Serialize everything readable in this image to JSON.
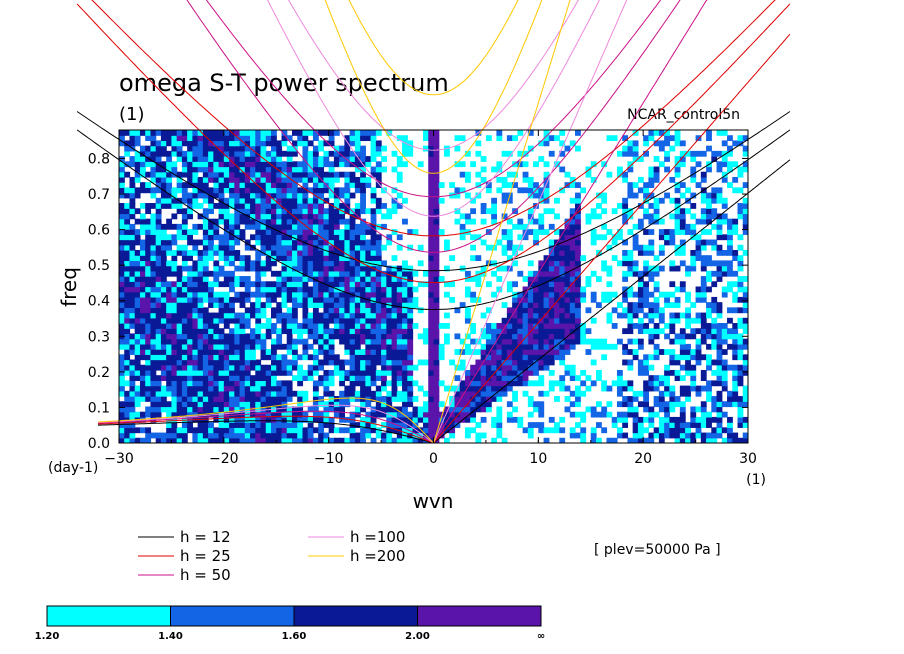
{
  "chart_data": {
    "type": "heatmap",
    "title": "omega S-T power spectrum",
    "subtitle": "(1)",
    "case_label": "NCAR_control5n",
    "xlabel": "wvn",
    "ylabel": "freq",
    "x_unit": "(1)",
    "y_unit": "(day-1)",
    "xlim": [
      -30,
      30
    ],
    "ylim": [
      0,
      0.88
    ],
    "xticks": [
      "−30",
      "−20",
      "−10",
      "0",
      "10",
      "20",
      "30"
    ],
    "xtick_values": [
      -30,
      -20,
      -10,
      0,
      10,
      20,
      30
    ],
    "yticks": [
      "0.0",
      "0.1",
      "0.2",
      "0.3",
      "0.4",
      "0.5",
      "0.6",
      "0.7",
      "0.8"
    ],
    "ytick_values": [
      0,
      0.1,
      0.2,
      0.3,
      0.4,
      0.5,
      0.6,
      0.7,
      0.8
    ],
    "annotation": "[ plev=50000 Pa ]",
    "colorbar": {
      "labels": [
        "1.20",
        "1.40",
        "1.60",
        "2.00",
        "∞"
      ],
      "bins": [
        {
          "from": 1.2,
          "to": 1.4,
          "color": "#00ffff"
        },
        {
          "from": 1.4,
          "to": 1.6,
          "color": "#1464e6"
        },
        {
          "from": 1.6,
          "to": 2.0,
          "color": "#0a1a96"
        },
        {
          "from": 2.0,
          "to": "inf",
          "color": "#5a14aa"
        }
      ]
    },
    "dispersion_curves": [
      {
        "label": "h = 12",
        "h": 12,
        "color": "#000000"
      },
      {
        "label": "h = 25",
        "h": 25,
        "color": "#e00000"
      },
      {
        "label": "h = 50",
        "h": 50,
        "color": "#cc1188"
      },
      {
        "label": "h =100",
        "h": 100,
        "color": "#ee88dd"
      },
      {
        "label": "h =200",
        "h": 200,
        "color": "#ffc800"
      }
    ],
    "grid": false,
    "legend_placement": "bottom-left"
  }
}
